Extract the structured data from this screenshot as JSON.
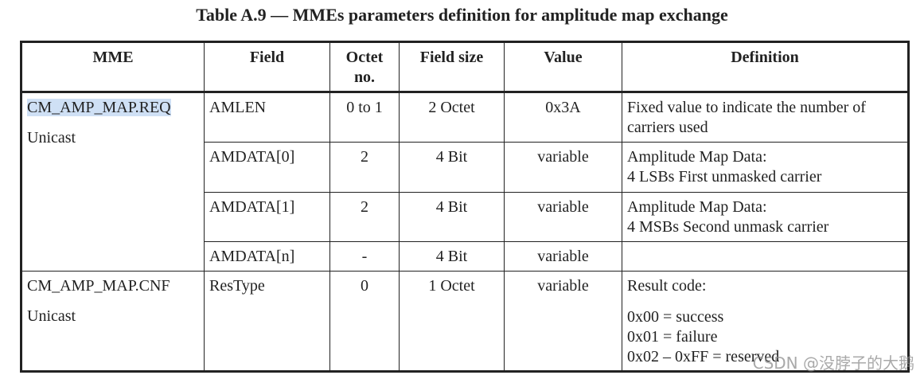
{
  "title": "Table A.9 — MMEs parameters definition for amplitude map exchange",
  "table": {
    "headers": [
      "MME",
      "Field",
      "Octet no.",
      "Field size",
      "Value",
      "Definition"
    ],
    "groups": [
      {
        "mme": [
          "CM_AMP_MAP.REQ",
          "Unicast"
        ],
        "rows": [
          {
            "field": "AMLEN",
            "octet": "0 to 1",
            "size": "2 Octet",
            "value": "0x3A",
            "definition": [
              "Fixed value to indicate the number of carriers used"
            ]
          },
          {
            "field": "AMDATA[0]",
            "octet": "2",
            "size": "4 Bit",
            "value": "variable",
            "definition": [
              "Amplitude Map Data:",
              "4 LSBs First unmasked carrier"
            ]
          },
          {
            "field": "AMDATA[1]",
            "octet": "2",
            "size": "4 Bit",
            "value": "variable",
            "definition": [
              "Amplitude Map Data:",
              "4 MSBs Second unmask carrier"
            ]
          },
          {
            "field": "AMDATA[n]",
            "octet": "-",
            "size": "4 Bit",
            "value": "variable",
            "definition": []
          }
        ]
      },
      {
        "mme": [
          "CM_AMP_MAP.CNF",
          "Unicast"
        ],
        "rows": [
          {
            "field": "ResType",
            "octet": "0",
            "size": "1 Octet",
            "value": "variable",
            "definition": [
              "Result code:",
              "0x00 = success",
              "0x01 = failure",
              "0x02 – 0xFF = reserved"
            ]
          }
        ]
      }
    ]
  },
  "watermark": "CSDN @没脖子的大鹅"
}
